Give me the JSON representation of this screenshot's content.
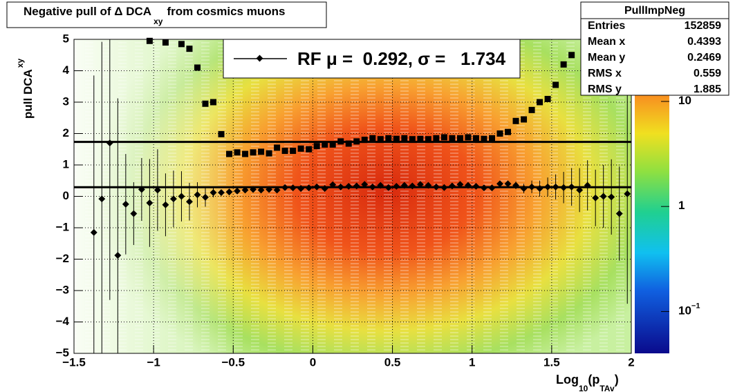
{
  "chart_data": {
    "type": "profile2d",
    "title": {
      "text": "Negative pull of Δ DCA",
      "sub": "xy",
      "tail": "from cosmics muons"
    },
    "y_label": {
      "text": "pull DCA",
      "sub": "xy"
    },
    "x_label": {
      "text": "Log",
      "sub": "10",
      "mid": "(p",
      "sub2": "TAv",
      "tail": ")"
    },
    "xlim": [
      -1.5,
      2
    ],
    "ylim": [
      -5,
      5
    ],
    "xticks": [
      {
        "value": -1.5,
        "label": "−1.5"
      },
      {
        "value": -1,
        "label": "−1"
      },
      {
        "value": -0.5,
        "label": "−0.5"
      },
      0,
      0.5,
      1,
      1.5,
      2
    ],
    "yticks": [
      {
        "value": -5,
        "label": "−5"
      },
      {
        "value": -4,
        "label": "−4"
      },
      {
        "value": -3,
        "label": "−3"
      },
      {
        "value": -2,
        "label": "−2"
      },
      {
        "value": -1,
        "label": "−1"
      },
      0,
      1,
      2,
      3,
      4,
      5
    ],
    "grid": true,
    "zlim": [
      0.04,
      39
    ],
    "zlog": true,
    "zticks": [
      {
        "value": 0.1,
        "label": "10",
        "exponent": "−1"
      },
      1,
      10
    ],
    "x": [
      -1.375,
      -1.325,
      -1.275,
      -1.225,
      -1.175,
      -1.125,
      -1.075,
      -1.025,
      -0.975,
      -0.925,
      -0.875,
      -0.825,
      -0.775,
      -0.725,
      -0.675,
      -0.625,
      -0.575,
      -0.525,
      -0.475,
      -0.425,
      -0.375,
      -0.325,
      -0.275,
      -0.225,
      -0.175,
      -0.125,
      -0.075,
      -0.025,
      0.025,
      0.075,
      0.125,
      0.175,
      0.225,
      0.275,
      0.325,
      0.375,
      0.425,
      0.475,
      0.525,
      0.575,
      0.625,
      0.675,
      0.725,
      0.775,
      0.825,
      0.875,
      0.925,
      0.975,
      1.025,
      1.075,
      1.125,
      1.175,
      1.225,
      1.275,
      1.325,
      1.375,
      1.425,
      1.475,
      1.525,
      1.575,
      1.625,
      1.675,
      1.725,
      1.775,
      1.825,
      1.875,
      1.925,
      1.975
    ],
    "series": [
      {
        "marker": "diamond",
        "color": "#000000",
        "values": [
          -1.15,
          -0.08,
          1.7,
          -1.88,
          -0.25,
          -0.55,
          0.22,
          -0.21,
          0.2,
          -0.27,
          -0.08,
          0.0,
          -0.17,
          0.05,
          -0.03,
          0.12,
          0.12,
          0.14,
          0.17,
          0.2,
          0.22,
          0.2,
          0.22,
          0.2,
          0.28,
          0.27,
          0.25,
          0.27,
          0.3,
          0.25,
          0.37,
          0.3,
          0.32,
          0.33,
          0.38,
          0.3,
          0.35,
          0.28,
          0.32,
          0.35,
          0.33,
          0.38,
          0.35,
          0.3,
          0.28,
          0.33,
          0.38,
          0.35,
          0.32,
          0.27,
          0.27,
          0.4,
          0.4,
          0.35,
          0.25,
          0.3,
          0.25,
          0.3,
          0.3,
          0.28,
          0.3,
          0.2,
          0.35,
          -0.05,
          0.0,
          -0.02,
          -0.55,
          0.08
        ],
        "errors": [
          5,
          5,
          5,
          5,
          1.6,
          1,
          1,
          1.4,
          1.3,
          1,
          0.9,
          0.8,
          0.6,
          0.4,
          0.3,
          0.15,
          0.1,
          0.08,
          0.06,
          0.05,
          0.05,
          0.05,
          0.04,
          0.04,
          0.04,
          0.04,
          0.04,
          0.04,
          0.04,
          0.04,
          0.04,
          0.04,
          0.04,
          0.04,
          0.04,
          0.04,
          0.04,
          0.04,
          0.04,
          0.04,
          0.04,
          0.04,
          0.04,
          0.04,
          0.04,
          0.05,
          0.05,
          0.05,
          0.05,
          0.06,
          0.07,
          0.08,
          0.1,
          0.12,
          0.15,
          0.2,
          0.25,
          0.3,
          0.4,
          0.5,
          0.6,
          0.7,
          0.8,
          0.9,
          1.0,
          1.2,
          1.5,
          3.5
        ]
      },
      {
        "marker": "square",
        "color": "#000000",
        "values": [
          null,
          null,
          null,
          null,
          null,
          null,
          null,
          4.95,
          null,
          4.9,
          null,
          4.85,
          4.7,
          4.1,
          2.95,
          3.0,
          1.98,
          1.35,
          1.4,
          1.35,
          1.4,
          1.42,
          1.37,
          1.55,
          1.45,
          1.45,
          1.52,
          1.5,
          1.6,
          1.65,
          1.65,
          1.75,
          1.68,
          1.75,
          1.8,
          1.85,
          1.82,
          1.85,
          1.83,
          1.85,
          1.82,
          1.83,
          1.82,
          1.85,
          1.88,
          1.85,
          1.85,
          1.88,
          1.85,
          1.83,
          1.85,
          2.0,
          2.05,
          2.4,
          2.45,
          2.75,
          3.0,
          3.1,
          3.55,
          4.2,
          4.5,
          null,
          null,
          null,
          null,
          null,
          null,
          null
        ]
      }
    ],
    "fit_lines": [
      0.292,
      1.734
    ],
    "legend": "RF μ =  0.292, σ =   1.734",
    "stats": {
      "title": "PullImpNeg",
      "rows": [
        [
          "Entries",
          "152859"
        ],
        [
          "Mean x",
          "0.4393"
        ],
        [
          "Mean y",
          "0.2469"
        ],
        [
          "RMS x",
          "0.559"
        ],
        [
          "RMS y",
          "1.885"
        ]
      ]
    }
  }
}
